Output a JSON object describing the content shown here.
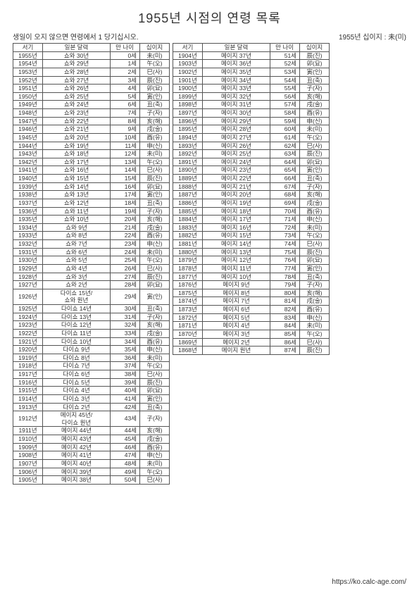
{
  "title": "1955년 시점의 연령 목록",
  "note_left": "생일이 오지 않으면 연령에서 1 당기십시오.",
  "note_right": "1955년 십이지 : 未(미)",
  "footer": "https://ko.calc-age.com/",
  "headers": {
    "year": "서기",
    "era": "일본 달력",
    "age": "만 나이",
    "zod": "십이지"
  },
  "left": [
    [
      "1955년",
      "쇼와 30년",
      "0세",
      "未(미)"
    ],
    [
      "1954년",
      "쇼와 29년",
      "1세",
      "午(오)"
    ],
    [
      "1953년",
      "쇼와 28년",
      "2세",
      "巳(사)"
    ],
    [
      "1952년",
      "쇼와 27년",
      "3세",
      "辰(진)"
    ],
    [
      "1951년",
      "쇼와 26년",
      "4세",
      "卯(묘)"
    ],
    [
      "1950년",
      "쇼와 25년",
      "5세",
      "寅(인)"
    ],
    [
      "1949년",
      "쇼와 24년",
      "6세",
      "丑(축)"
    ],
    [
      "1948년",
      "쇼와 23년",
      "7세",
      "子(자)"
    ],
    [
      "1947년",
      "쇼와 22년",
      "8세",
      "亥(해)"
    ],
    [
      "1946년",
      "쇼와 21년",
      "9세",
      "戌(술)"
    ],
    [
      "1945년",
      "쇼와 20년",
      "10세",
      "酉(유)"
    ],
    [
      "1944년",
      "쇼와 19년",
      "11세",
      "申(신)"
    ],
    [
      "1943년",
      "쇼와 18년",
      "12세",
      "未(미)"
    ],
    [
      "1942년",
      "쇼와 17년",
      "13세",
      "午(오)"
    ],
    [
      "1941년",
      "쇼와 16년",
      "14세",
      "巳(사)"
    ],
    [
      "1940년",
      "쇼와 15년",
      "15세",
      "辰(진)"
    ],
    [
      "1939년",
      "쇼와 14년",
      "16세",
      "卯(묘)"
    ],
    [
      "1938년",
      "쇼와 13년",
      "17세",
      "寅(인)"
    ],
    [
      "1937년",
      "쇼와 12년",
      "18세",
      "丑(축)"
    ],
    [
      "1936년",
      "쇼와 11년",
      "19세",
      "子(자)"
    ],
    [
      "1935년",
      "쇼와 10년",
      "20세",
      "亥(해)"
    ],
    [
      "1934년",
      "쇼와 9년",
      "21세",
      "戌(술)"
    ],
    [
      "1933년",
      "쇼와 8년",
      "22세",
      "酉(유)"
    ],
    [
      "1932년",
      "쇼와 7년",
      "23세",
      "申(신)"
    ],
    [
      "1931년",
      "쇼와 6년",
      "24세",
      "未(미)"
    ],
    [
      "1930년",
      "쇼와 5년",
      "25세",
      "午(오)"
    ],
    [
      "1929년",
      "쇼와 4년",
      "26세",
      "巳(사)"
    ],
    [
      "1928년",
      "쇼와 3년",
      "27세",
      "辰(진)"
    ],
    [
      "1927년",
      "쇼와 2년",
      "28세",
      "卯(묘)"
    ],
    [
      "1926년",
      "다이쇼 15년/\n쇼와 원년",
      "29세",
      "寅(인)"
    ],
    [
      "1925년",
      "다이쇼 14년",
      "30세",
      "丑(축)"
    ],
    [
      "1924년",
      "다이쇼 13년",
      "31세",
      "子(자)"
    ],
    [
      "1923년",
      "다이쇼 12년",
      "32세",
      "亥(해)"
    ],
    [
      "1922년",
      "다이쇼 11년",
      "33세",
      "戌(술)"
    ],
    [
      "1921년",
      "다이쇼 10년",
      "34세",
      "酉(유)"
    ],
    [
      "1920년",
      "다이쇼 9년",
      "35세",
      "申(신)"
    ],
    [
      "1919년",
      "다이쇼 8년",
      "36세",
      "未(미)"
    ],
    [
      "1918년",
      "다이쇼 7년",
      "37세",
      "午(오)"
    ],
    [
      "1917년",
      "다이쇼 6년",
      "38세",
      "巳(사)"
    ],
    [
      "1916년",
      "다이쇼 5년",
      "39세",
      "辰(진)"
    ],
    [
      "1915년",
      "다이쇼 4년",
      "40세",
      "卯(묘)"
    ],
    [
      "1914년",
      "다이쇼 3년",
      "41세",
      "寅(인)"
    ],
    [
      "1913년",
      "다이쇼 2년",
      "42세",
      "丑(축)"
    ],
    [
      "1912년",
      "메이지 45년/\n다이쇼 원년",
      "43세",
      "子(자)"
    ],
    [
      "1911년",
      "메이지 44년",
      "44세",
      "亥(해)"
    ],
    [
      "1910년",
      "메이지 43년",
      "45세",
      "戌(술)"
    ],
    [
      "1909년",
      "메이지 42년",
      "46세",
      "酉(유)"
    ],
    [
      "1908년",
      "메이지 41년",
      "47세",
      "申(신)"
    ],
    [
      "1907년",
      "메이지 40년",
      "48세",
      "未(미)"
    ],
    [
      "1906년",
      "메이지 39년",
      "49세",
      "午(오)"
    ],
    [
      "1905년",
      "메이지 38년",
      "50세",
      "巳(사)"
    ]
  ],
  "right": [
    [
      "1904년",
      "메이지 37년",
      "51세",
      "辰(진)"
    ],
    [
      "1903년",
      "메이지 36년",
      "52세",
      "卯(묘)"
    ],
    [
      "1902년",
      "메이지 35년",
      "53세",
      "寅(인)"
    ],
    [
      "1901년",
      "메이지 34년",
      "54세",
      "丑(축)"
    ],
    [
      "1900년",
      "메이지 33년",
      "55세",
      "子(자)"
    ],
    [
      "1899년",
      "메이지 32년",
      "56세",
      "亥(해)"
    ],
    [
      "1898년",
      "메이지 31년",
      "57세",
      "戌(술)"
    ],
    [
      "1897년",
      "메이지 30년",
      "58세",
      "酉(유)"
    ],
    [
      "1896년",
      "메이지 29년",
      "59세",
      "申(신)"
    ],
    [
      "1895년",
      "메이지 28년",
      "60세",
      "未(미)"
    ],
    [
      "1894년",
      "메이지 27년",
      "61세",
      "午(오)"
    ],
    [
      "1893년",
      "메이지 26년",
      "62세",
      "巳(사)"
    ],
    [
      "1892년",
      "메이지 25년",
      "63세",
      "辰(진)"
    ],
    [
      "1891년",
      "메이지 24년",
      "64세",
      "卯(묘)"
    ],
    [
      "1890년",
      "메이지 23년",
      "65세",
      "寅(인)"
    ],
    [
      "1889년",
      "메이지 22년",
      "66세",
      "丑(축)"
    ],
    [
      "1888년",
      "메이지 21년",
      "67세",
      "子(자)"
    ],
    [
      "1887년",
      "메이지 20년",
      "68세",
      "亥(해)"
    ],
    [
      "1886년",
      "메이지 19년",
      "69세",
      "戌(술)"
    ],
    [
      "1885년",
      "메이지 18년",
      "70세",
      "酉(유)"
    ],
    [
      "1884년",
      "메이지 17년",
      "71세",
      "申(신)"
    ],
    [
      "1883년",
      "메이지 16년",
      "72세",
      "未(미)"
    ],
    [
      "1882년",
      "메이지 15년",
      "73세",
      "午(오)"
    ],
    [
      "1881년",
      "메이지 14년",
      "74세",
      "巳(사)"
    ],
    [
      "1880년",
      "메이지 13년",
      "75세",
      "辰(진)"
    ],
    [
      "1879년",
      "메이지 12년",
      "76세",
      "卯(묘)"
    ],
    [
      "1878년",
      "메이지 11년",
      "77세",
      "寅(인)"
    ],
    [
      "1877년",
      "메이지 10년",
      "78세",
      "丑(축)"
    ],
    [
      "1876년",
      "메이지 9년",
      "79세",
      "子(자)"
    ],
    [
      "1875년",
      "메이지 8년",
      "80세",
      "亥(해)"
    ],
    [
      "1874년",
      "메이지 7년",
      "81세",
      "戌(술)"
    ],
    [
      "1873년",
      "메이지 6년",
      "82세",
      "酉(유)"
    ],
    [
      "1872년",
      "메이지 5년",
      "83세",
      "申(신)"
    ],
    [
      "1871년",
      "메이지 4년",
      "84세",
      "未(미)"
    ],
    [
      "1870년",
      "메이지 3년",
      "85세",
      "午(오)"
    ],
    [
      "1869년",
      "메이지 2년",
      "86세",
      "巳(사)"
    ],
    [
      "1868년",
      "메이지 원년",
      "87세",
      "辰(진)"
    ]
  ]
}
